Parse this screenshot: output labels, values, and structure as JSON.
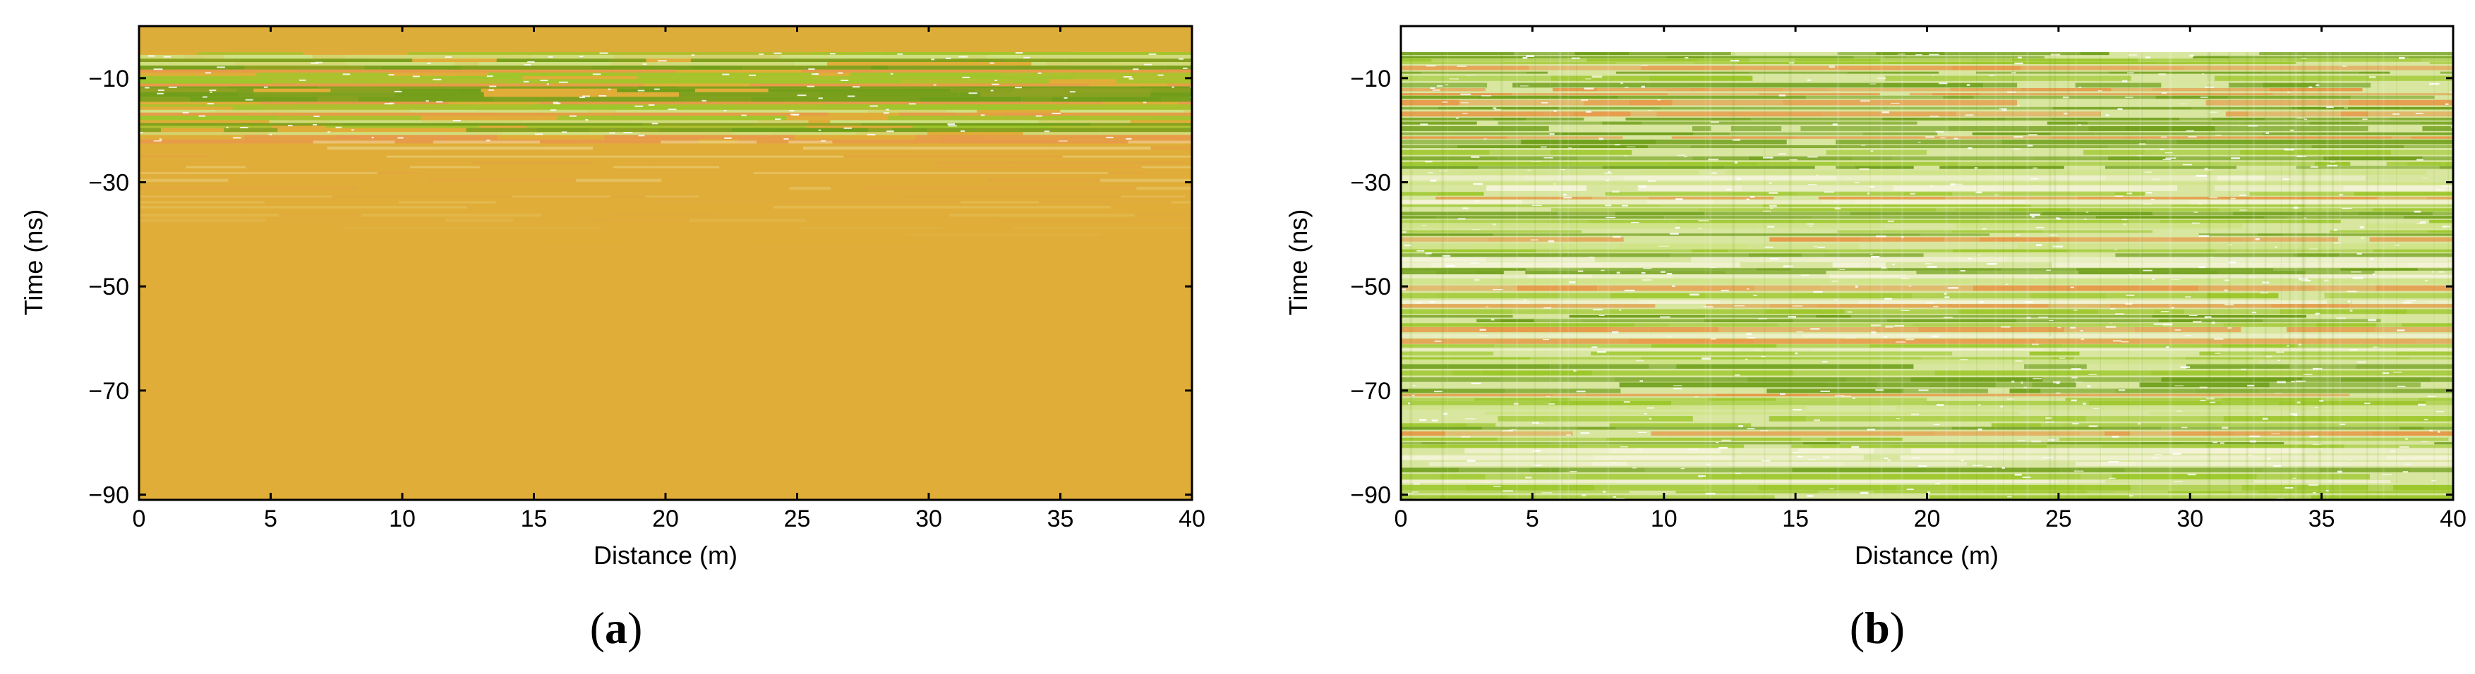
{
  "chart_data": [
    {
      "panel": "(a)",
      "panel_letter": "a",
      "type": "heatmap",
      "xlabel": "Distance (m)",
      "ylabel": "Time (ns)",
      "xlim": [
        0,
        40
      ],
      "ylim": [
        -91,
        0
      ],
      "xticks": [
        0,
        5,
        10,
        15,
        20,
        25,
        30,
        35,
        40
      ],
      "yticks": [
        -10,
        -30,
        -50,
        -70,
        -90
      ],
      "ytick_labels": [
        "−10",
        "−30",
        "−50",
        "−70",
        "−90"
      ],
      "background_color": "#E0AE38",
      "top_band_color": "#DDAD3A",
      "data_start_time": -5,
      "reflection_zone_end": -22,
      "fade_zone_end": -42,
      "colors": {
        "dark_green": "#6E9E1A",
        "green": "#9CC72B",
        "light_green": "#CFE387",
        "orange": "#E79A4A",
        "pale": "#F1E3A6"
      }
    },
    {
      "panel": "(b)",
      "panel_letter": "b",
      "type": "heatmap",
      "xlabel": "Distance (m)",
      "ylabel": "Time (ns)",
      "xlim": [
        0,
        40
      ],
      "ylim": [
        -91,
        0
      ],
      "xticks": [
        0,
        5,
        10,
        15,
        20,
        25,
        30,
        35,
        40
      ],
      "yticks": [
        -10,
        -30,
        -50,
        -70,
        -90
      ],
      "ytick_labels": [
        "−10",
        "−30",
        "−50",
        "−70",
        "−90"
      ],
      "background_color": "#D8E6A0",
      "top_band_color": "#FFFFFF",
      "data_start_time": -5,
      "colors": {
        "dark_green": "#6E9E1A",
        "green": "#9CC72B",
        "light_green": "#CFE387",
        "orange": "#E79A4A",
        "pale": "#F4F3D8"
      }
    }
  ]
}
